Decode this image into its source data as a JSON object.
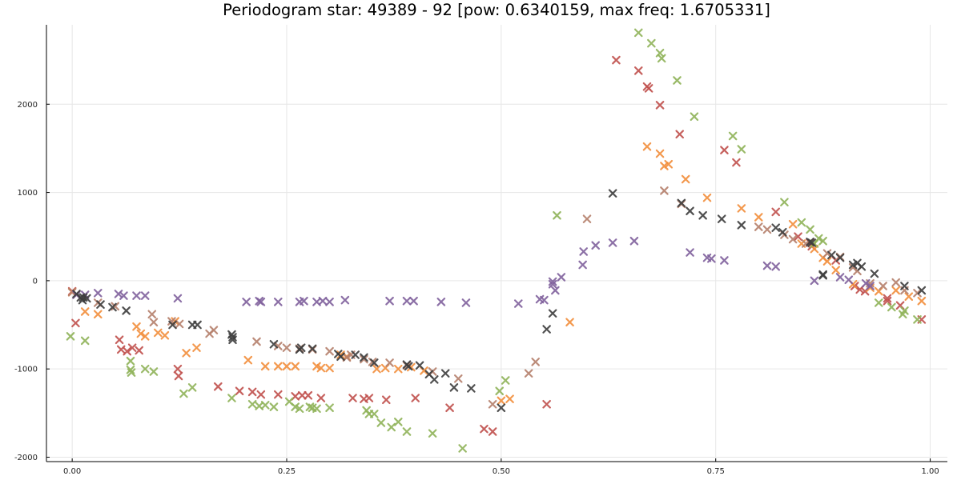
{
  "chart_data": {
    "type": "scatter",
    "title": "Periodogram star: 49389 - 92 [pow: 0.6340159, max freq: 1.6705331]",
    "xlabel": "",
    "ylabel": "",
    "xlim": [
      -0.03,
      1.02
    ],
    "ylim": [
      -2050,
      2900
    ],
    "xticks": [
      0.0,
      0.25,
      0.5,
      0.75,
      1.0
    ],
    "xtick_labels": [
      "0.00",
      "0.25",
      "0.50",
      "0.75",
      "1.00"
    ],
    "yticks": [
      -2000,
      -1000,
      0,
      1000,
      2000
    ],
    "ytick_labels": [
      "-2000",
      "-1000",
      "0",
      "1000",
      "2000"
    ],
    "grid": true,
    "marker": "x",
    "series": [
      {
        "color": "#c0504d",
        "points": [
          [
            0.0,
            -120
          ],
          [
            0.004,
            -480
          ],
          [
            0.055,
            -670
          ],
          [
            0.057,
            -780
          ],
          [
            0.064,
            -800
          ],
          [
            0.07,
            -760
          ],
          [
            0.078,
            -790
          ],
          [
            0.123,
            -1000
          ],
          [
            0.124,
            -1080
          ],
          [
            0.17,
            -1200
          ],
          [
            0.195,
            -1250
          ],
          [
            0.21,
            -1260
          ],
          [
            0.22,
            -1290
          ],
          [
            0.24,
            -1290
          ],
          [
            0.26,
            -1310
          ],
          [
            0.268,
            -1300
          ],
          [
            0.275,
            -1300
          ],
          [
            0.29,
            -1330
          ],
          [
            0.327,
            -1330
          ],
          [
            0.34,
            -1340
          ],
          [
            0.346,
            -1330
          ],
          [
            0.366,
            -1350
          ],
          [
            0.4,
            -1330
          ],
          [
            0.44,
            -1440
          ],
          [
            0.48,
            -1680
          ],
          [
            0.49,
            -1710
          ],
          [
            0.553,
            -1400
          ],
          [
            0.634,
            2500
          ],
          [
            0.66,
            2380
          ],
          [
            0.67,
            2200
          ],
          [
            0.672,
            2180
          ],
          [
            0.685,
            1990
          ],
          [
            0.708,
            1660
          ],
          [
            0.76,
            1480
          ],
          [
            0.774,
            1340
          ],
          [
            0.82,
            780
          ],
          [
            0.846,
            500
          ],
          [
            0.86,
            430
          ],
          [
            0.862,
            390
          ],
          [
            0.89,
            230
          ],
          [
            0.912,
            -60
          ],
          [
            0.918,
            -100
          ],
          [
            0.924,
            -120
          ],
          [
            0.95,
            -200
          ],
          [
            0.95,
            -230
          ],
          [
            0.965,
            -280
          ],
          [
            0.99,
            -440
          ]
        ]
      },
      {
        "color": "#f28e3c",
        "points": [
          [
            0.0,
            -130
          ],
          [
            0.015,
            -350
          ],
          [
            0.03,
            -380
          ],
          [
            0.075,
            -520
          ],
          [
            0.08,
            -600
          ],
          [
            0.085,
            -630
          ],
          [
            0.1,
            -590
          ],
          [
            0.108,
            -620
          ],
          [
            0.12,
            -460
          ],
          [
            0.133,
            -820
          ],
          [
            0.145,
            -760
          ],
          [
            0.205,
            -900
          ],
          [
            0.225,
            -970
          ],
          [
            0.24,
            -970
          ],
          [
            0.25,
            -970
          ],
          [
            0.26,
            -970
          ],
          [
            0.285,
            -970
          ],
          [
            0.29,
            -990
          ],
          [
            0.3,
            -990
          ],
          [
            0.313,
            -840
          ],
          [
            0.32,
            -860
          ],
          [
            0.355,
            -1000
          ],
          [
            0.365,
            -990
          ],
          [
            0.38,
            -1000
          ],
          [
            0.395,
            -980
          ],
          [
            0.41,
            -1020
          ],
          [
            0.5,
            -1360
          ],
          [
            0.51,
            -1340
          ],
          [
            0.58,
            -470
          ],
          [
            0.67,
            1520
          ],
          [
            0.685,
            1440
          ],
          [
            0.69,
            1300
          ],
          [
            0.695,
            1320
          ],
          [
            0.715,
            1150
          ],
          [
            0.74,
            940
          ],
          [
            0.78,
            820
          ],
          [
            0.8,
            720
          ],
          [
            0.84,
            640
          ],
          [
            0.85,
            420
          ],
          [
            0.865,
            360
          ],
          [
            0.875,
            260
          ],
          [
            0.88,
            220
          ],
          [
            0.89,
            120
          ],
          [
            0.91,
            -40
          ],
          [
            0.93,
            -80
          ],
          [
            0.94,
            -120
          ],
          [
            0.96,
            -110
          ],
          [
            0.975,
            -180
          ],
          [
            0.99,
            -230
          ]
        ]
      },
      {
        "color": "#8fb359",
        "points": [
          [
            -0.002,
            -630
          ],
          [
            0.015,
            -680
          ],
          [
            0.068,
            -910
          ],
          [
            0.068,
            -1010
          ],
          [
            0.069,
            -1040
          ],
          [
            0.085,
            -1000
          ],
          [
            0.095,
            -1030
          ],
          [
            0.13,
            -1280
          ],
          [
            0.14,
            -1210
          ],
          [
            0.186,
            -1330
          ],
          [
            0.21,
            -1400
          ],
          [
            0.218,
            -1420
          ],
          [
            0.225,
            -1410
          ],
          [
            0.235,
            -1430
          ],
          [
            0.253,
            -1370
          ],
          [
            0.26,
            -1430
          ],
          [
            0.265,
            -1450
          ],
          [
            0.277,
            -1430
          ],
          [
            0.28,
            -1440
          ],
          [
            0.285,
            -1450
          ],
          [
            0.3,
            -1440
          ],
          [
            0.343,
            -1470
          ],
          [
            0.346,
            -1510
          ],
          [
            0.352,
            -1510
          ],
          [
            0.36,
            -1610
          ],
          [
            0.372,
            -1660
          ],
          [
            0.38,
            -1600
          ],
          [
            0.39,
            -1710
          ],
          [
            0.42,
            -1730
          ],
          [
            0.455,
            -1900
          ],
          [
            0.498,
            -1250
          ],
          [
            0.505,
            -1130
          ],
          [
            0.565,
            740
          ],
          [
            0.66,
            2810
          ],
          [
            0.675,
            2690
          ],
          [
            0.685,
            2580
          ],
          [
            0.687,
            2520
          ],
          [
            0.705,
            2270
          ],
          [
            0.725,
            1860
          ],
          [
            0.77,
            1640
          ],
          [
            0.78,
            1490
          ],
          [
            0.83,
            890
          ],
          [
            0.85,
            660
          ],
          [
            0.86,
            580
          ],
          [
            0.865,
            420
          ],
          [
            0.87,
            480
          ],
          [
            0.875,
            450
          ],
          [
            0.94,
            -250
          ],
          [
            0.955,
            -300
          ],
          [
            0.968,
            -380
          ],
          [
            0.97,
            -340
          ],
          [
            0.985,
            -440
          ]
        ]
      },
      {
        "color": "#b5806b",
        "points": [
          [
            0.0,
            -130
          ],
          [
            0.03,
            -250
          ],
          [
            0.05,
            -290
          ],
          [
            0.093,
            -380
          ],
          [
            0.095,
            -470
          ],
          [
            0.116,
            -460
          ],
          [
            0.125,
            -490
          ],
          [
            0.16,
            -600
          ],
          [
            0.165,
            -560
          ],
          [
            0.215,
            -690
          ],
          [
            0.24,
            -740
          ],
          [
            0.25,
            -760
          ],
          [
            0.265,
            -770
          ],
          [
            0.28,
            -780
          ],
          [
            0.3,
            -800
          ],
          [
            0.32,
            -870
          ],
          [
            0.325,
            -840
          ],
          [
            0.34,
            -890
          ],
          [
            0.35,
            -920
          ],
          [
            0.37,
            -930
          ],
          [
            0.39,
            -960
          ],
          [
            0.42,
            -1030
          ],
          [
            0.45,
            -1110
          ],
          [
            0.49,
            -1400
          ],
          [
            0.532,
            -1050
          ],
          [
            0.54,
            -920
          ],
          [
            0.6,
            700
          ],
          [
            0.69,
            1020
          ],
          [
            0.71,
            870
          ],
          [
            0.8,
            610
          ],
          [
            0.81,
            580
          ],
          [
            0.83,
            520
          ],
          [
            0.84,
            470
          ],
          [
            0.855,
            420
          ],
          [
            0.88,
            310
          ],
          [
            0.895,
            270
          ],
          [
            0.91,
            150
          ],
          [
            0.915,
            110
          ],
          [
            0.93,
            -30
          ],
          [
            0.945,
            -60
          ],
          [
            0.96,
            -20
          ],
          [
            0.97,
            -110
          ],
          [
            0.985,
            -140
          ]
        ]
      },
      {
        "color": "#80619c",
        "points": [
          [
            0.005,
            -160
          ],
          [
            0.015,
            -160
          ],
          [
            0.03,
            -140
          ],
          [
            0.054,
            -150
          ],
          [
            0.06,
            -170
          ],
          [
            0.075,
            -170
          ],
          [
            0.085,
            -170
          ],
          [
            0.123,
            -200
          ],
          [
            0.203,
            -240
          ],
          [
            0.218,
            -230
          ],
          [
            0.22,
            -240
          ],
          [
            0.24,
            -240
          ],
          [
            0.265,
            -240
          ],
          [
            0.27,
            -230
          ],
          [
            0.285,
            -240
          ],
          [
            0.292,
            -230
          ],
          [
            0.3,
            -240
          ],
          [
            0.318,
            -220
          ],
          [
            0.37,
            -230
          ],
          [
            0.39,
            -230
          ],
          [
            0.398,
            -230
          ],
          [
            0.43,
            -240
          ],
          [
            0.459,
            -250
          ],
          [
            0.52,
            -260
          ],
          [
            0.545,
            -210
          ],
          [
            0.55,
            -220
          ],
          [
            0.56,
            -40
          ],
          [
            0.56,
            -10
          ],
          [
            0.563,
            -110
          ],
          [
            0.57,
            40
          ],
          [
            0.595,
            180
          ],
          [
            0.596,
            330
          ],
          [
            0.61,
            400
          ],
          [
            0.63,
            430
          ],
          [
            0.655,
            450
          ],
          [
            0.72,
            320
          ],
          [
            0.74,
            260
          ],
          [
            0.745,
            250
          ],
          [
            0.76,
            230
          ],
          [
            0.81,
            170
          ],
          [
            0.82,
            160
          ],
          [
            0.865,
            0
          ],
          [
            0.895,
            40
          ],
          [
            0.905,
            10
          ],
          [
            0.925,
            -30
          ],
          [
            0.93,
            -60
          ]
        ]
      },
      {
        "color": "#3d3d3d",
        "points": [
          [
            0.005,
            -150
          ],
          [
            0.01,
            -190
          ],
          [
            0.012,
            -220
          ],
          [
            0.013,
            -190
          ],
          [
            0.017,
            -200
          ],
          [
            0.033,
            -270
          ],
          [
            0.047,
            -300
          ],
          [
            0.063,
            -340
          ],
          [
            0.117,
            -500
          ],
          [
            0.14,
            -500
          ],
          [
            0.146,
            -500
          ],
          [
            0.186,
            -610
          ],
          [
            0.187,
            -640
          ],
          [
            0.187,
            -670
          ],
          [
            0.235,
            -720
          ],
          [
            0.265,
            -780
          ],
          [
            0.267,
            -760
          ],
          [
            0.28,
            -770
          ],
          [
            0.31,
            -830
          ],
          [
            0.313,
            -860
          ],
          [
            0.33,
            -840
          ],
          [
            0.34,
            -870
          ],
          [
            0.352,
            -930
          ],
          [
            0.39,
            -950
          ],
          [
            0.392,
            -970
          ],
          [
            0.405,
            -960
          ],
          [
            0.416,
            -1060
          ],
          [
            0.422,
            -1120
          ],
          [
            0.435,
            -1050
          ],
          [
            0.445,
            -1210
          ],
          [
            0.465,
            -1220
          ],
          [
            0.5,
            -1440
          ],
          [
            0.553,
            -550
          ],
          [
            0.56,
            -370
          ],
          [
            0.63,
            990
          ],
          [
            0.71,
            880
          ],
          [
            0.72,
            790
          ],
          [
            0.735,
            740
          ],
          [
            0.757,
            700
          ],
          [
            0.78,
            630
          ],
          [
            0.82,
            600
          ],
          [
            0.828,
            550
          ],
          [
            0.86,
            440
          ],
          [
            0.862,
            430
          ],
          [
            0.875,
            60
          ],
          [
            0.875,
            70
          ],
          [
            0.885,
            290
          ],
          [
            0.895,
            260
          ],
          [
            0.91,
            180
          ],
          [
            0.915,
            200
          ],
          [
            0.92,
            160
          ],
          [
            0.935,
            80
          ],
          [
            0.97,
            -60
          ],
          [
            0.99,
            -110
          ]
        ]
      }
    ]
  }
}
